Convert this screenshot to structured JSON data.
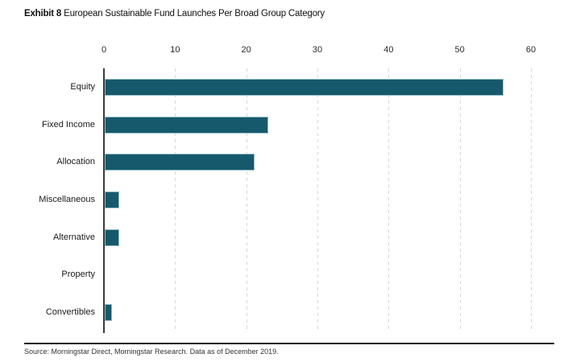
{
  "header": {
    "exhibit_label": "Exhibit 8",
    "title_text": "European Sustainable Fund Launches Per Broad Group Category"
  },
  "chart_data": {
    "type": "bar",
    "orientation": "horizontal",
    "title": "Exhibit 8 European Sustainable Fund Launches Per Broad Group Category",
    "categories": [
      "Equity",
      "Fixed Income",
      "Allocation",
      "Miscellaneous",
      "Alternative",
      "Property",
      "Convertibles"
    ],
    "values": [
      56,
      23,
      21,
      2,
      2,
      0,
      1
    ],
    "xlabel": "",
    "ylabel": "",
    "xlim": [
      0,
      60
    ],
    "xticks": [
      0,
      10,
      20,
      30,
      40,
      50,
      60
    ],
    "ticks_position": "top",
    "grid": "vertical-dashed",
    "legend": "none"
  },
  "colors": {
    "bar_fill": "#17596c",
    "gridline": "#d7d7d7",
    "axis_line": "#3a3a3a",
    "footer_rule": "#1a1a1a"
  },
  "footer": {
    "source": "Source: Morningstar Direct, Morningstar Research. Data as of December 2019."
  }
}
